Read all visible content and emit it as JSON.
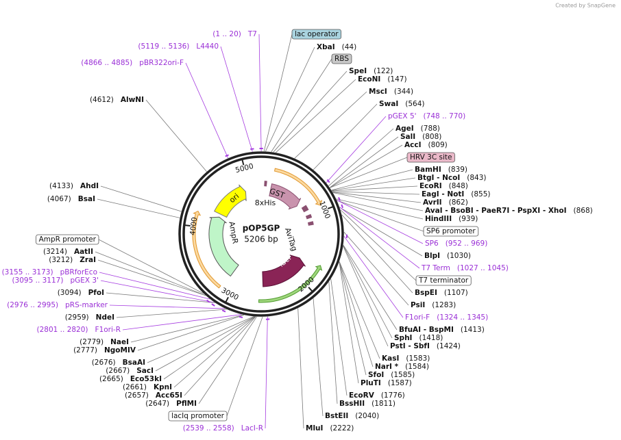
{
  "credit": "Created by SnapGene",
  "plasmid": {
    "name": "pOP5GP",
    "size": "5206 bp",
    "ticks": [
      1000,
      2000,
      3000,
      4000,
      5000
    ]
  },
  "features": [
    "GST",
    "8xHis",
    "AviTag",
    "lacI",
    "AmpR",
    "ori"
  ],
  "right_labels": [
    {
      "kind": "feature",
      "name": "lac operator",
      "color": "#a9d3df"
    },
    {
      "kind": "enzyme",
      "name": "XbaI",
      "site": "(44)"
    },
    {
      "kind": "feature",
      "name": "RBS",
      "color": "#c9c9c9"
    },
    {
      "kind": "enzyme",
      "name": "SpeI",
      "site": "(122)"
    },
    {
      "kind": "enzyme",
      "name": "EcoNI",
      "site": "(147)"
    },
    {
      "kind": "enzyme",
      "name": "MscI",
      "site": "(344)"
    },
    {
      "kind": "enzyme",
      "name": "SwaI",
      "site": "(564)"
    },
    {
      "kind": "primer",
      "name": "pGEX 5'",
      "site": "(748 .. 770)"
    },
    {
      "kind": "enzyme",
      "name": "AgeI",
      "site": "(788)"
    },
    {
      "kind": "enzyme",
      "name": "SalI",
      "site": "(808)"
    },
    {
      "kind": "enzyme",
      "name": "AccI",
      "site": "(809)"
    },
    {
      "kind": "feature",
      "name": "HRV 3C site",
      "color": "#eab9c9"
    },
    {
      "kind": "enzyme",
      "name": "BamHI",
      "site": "(839)"
    },
    {
      "kind": "enzyme",
      "name": "BtgI - NcoI",
      "site": "(843)"
    },
    {
      "kind": "enzyme",
      "name": "EcoRI",
      "site": "(848)"
    },
    {
      "kind": "enzyme",
      "name": "EagI - NotI",
      "site": "(855)"
    },
    {
      "kind": "enzyme",
      "name": "AvrII",
      "site": "(862)"
    },
    {
      "kind": "enzyme",
      "name": "AvaI - BsoBI - PaeR7I - PspXI - XhoI",
      "site": "(868)"
    },
    {
      "kind": "enzyme",
      "name": "HindIII",
      "site": "(939)"
    },
    {
      "kind": "feature",
      "name": "SP6 promoter",
      "color": "#ffffff"
    },
    {
      "kind": "primer",
      "name": "SP6",
      "site": "(952 .. 969)"
    },
    {
      "kind": "enzyme",
      "name": "BlpI",
      "site": "(1030)"
    },
    {
      "kind": "primer",
      "name": "T7 Term",
      "site": "(1027 .. 1045)"
    },
    {
      "kind": "feature",
      "name": "T7 terminator",
      "color": "#ffffff"
    },
    {
      "kind": "enzyme",
      "name": "BspEI",
      "site": "(1107)"
    },
    {
      "kind": "enzyme",
      "name": "PsiI",
      "site": "(1283)"
    },
    {
      "kind": "primer",
      "name": "F1ori-F",
      "site": "(1324 .. 1345)"
    },
    {
      "kind": "enzyme",
      "name": "BfuAI - BspMI",
      "site": "(1413)"
    },
    {
      "kind": "enzyme",
      "name": "SphI",
      "site": "(1418)"
    },
    {
      "kind": "enzyme",
      "name": "PstI - SbfI",
      "site": "(1424)"
    },
    {
      "kind": "enzyme",
      "name": "KasI",
      "site": "(1583)"
    },
    {
      "kind": "enzyme",
      "name": "NarI *",
      "site": "(1584)"
    },
    {
      "kind": "enzyme",
      "name": "SfoI",
      "site": "(1585)"
    },
    {
      "kind": "enzyme",
      "name": "PluTI",
      "site": "(1587)"
    },
    {
      "kind": "enzyme",
      "name": "EcoRV",
      "site": "(1776)"
    },
    {
      "kind": "enzyme",
      "name": "BssHII",
      "site": "(1811)"
    },
    {
      "kind": "enzyme",
      "name": "BstEII",
      "site": "(2040)"
    },
    {
      "kind": "enzyme",
      "name": "MluI",
      "site": "(2222)"
    }
  ],
  "left_labels": [
    {
      "kind": "primer",
      "name": "T7",
      "site": "(1 .. 20)"
    },
    {
      "kind": "primer",
      "name": "L4440",
      "site": "(5119 .. 5136)"
    },
    {
      "kind": "primer",
      "name": "pBR322ori-F",
      "site": "(4866 .. 4885)"
    },
    {
      "kind": "enzyme",
      "name": "AlwNI",
      "site": "(4612)"
    },
    {
      "kind": "enzyme",
      "name": "AhdI",
      "site": "(4133)"
    },
    {
      "kind": "enzyme",
      "name": "BsaI",
      "site": "(4067)"
    },
    {
      "kind": "feature",
      "name": "AmpR promoter",
      "color": "#ffffff"
    },
    {
      "kind": "enzyme",
      "name": "AatII",
      "site": "(3214)"
    },
    {
      "kind": "enzyme",
      "name": "ZraI",
      "site": "(3212)"
    },
    {
      "kind": "primer",
      "name": "pBRforEco",
      "site": "(3155 .. 3173)"
    },
    {
      "kind": "primer",
      "name": "pGEX 3'",
      "site": "(3095 .. 3117)"
    },
    {
      "kind": "enzyme",
      "name": "PfoI",
      "site": "(3094)"
    },
    {
      "kind": "primer",
      "name": "pRS-marker",
      "site": "(2976 .. 2995)"
    },
    {
      "kind": "enzyme",
      "name": "NdeI",
      "site": "(2959)"
    },
    {
      "kind": "primer",
      "name": "F1ori-R",
      "site": "(2801 .. 2820)"
    },
    {
      "kind": "enzyme",
      "name": "NaeI",
      "site": "(2779)"
    },
    {
      "kind": "enzyme",
      "name": "NgoMIV",
      "site": "(2777)"
    },
    {
      "kind": "enzyme",
      "name": "BsaAI",
      "site": "(2676)"
    },
    {
      "kind": "enzyme",
      "name": "SacI",
      "site": "(2667)"
    },
    {
      "kind": "enzyme",
      "name": "Eco53kI",
      "site": "(2665)"
    },
    {
      "kind": "enzyme",
      "name": "KpnI",
      "site": "(2661)"
    },
    {
      "kind": "enzyme",
      "name": "Acc65I",
      "site": "(2657)"
    },
    {
      "kind": "enzyme",
      "name": "PflMI",
      "site": "(2647)"
    },
    {
      "kind": "feature",
      "name": "lacIq promoter",
      "color": "#ffffff"
    },
    {
      "kind": "primer",
      "name": "LacI-R",
      "site": "(2539 .. 2558)"
    }
  ]
}
